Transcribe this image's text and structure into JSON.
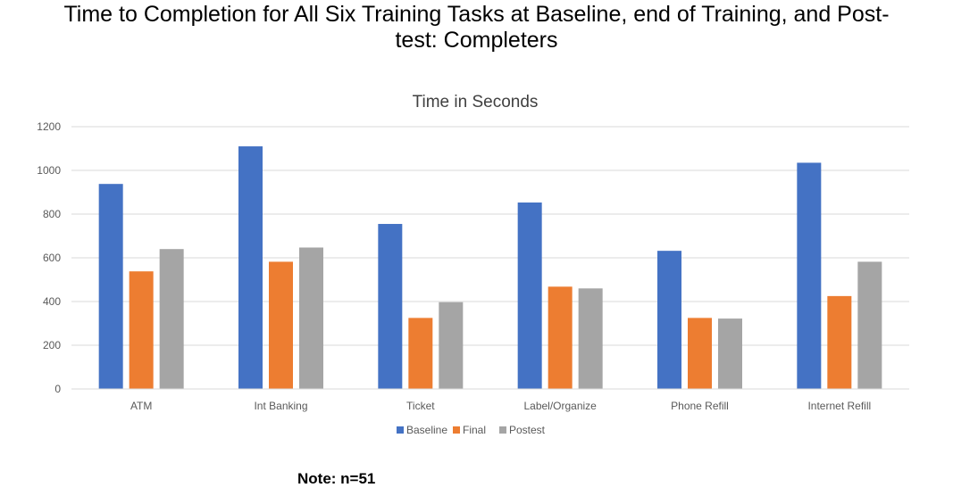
{
  "slide": {
    "title_line1": "Time to Completion for All Six Training Tasks at Baseline, end of Training, and Post-",
    "title_line2": "test: Completers",
    "note": "Note: n=51"
  },
  "chart_data": {
    "type": "bar",
    "title": "Time in Seconds",
    "categories": [
      "ATM",
      "Int Banking",
      "Ticket",
      "Label/Organize",
      "Phone Refill",
      "Internet Refill"
    ],
    "series": [
      {
        "name": "Baseline",
        "color": "#4472c4",
        "values": [
          938,
          1110,
          755,
          853,
          632,
          1035
        ]
      },
      {
        "name": "Final",
        "color": "#ed7d31",
        "values": [
          538,
          582,
          325,
          468,
          325,
          425
        ]
      },
      {
        "name": "Postest",
        "color": "#a5a5a5",
        "values": [
          640,
          647,
          397,
          460,
          322,
          582
        ]
      }
    ],
    "ylim": [
      0,
      1200
    ],
    "yticks": [
      "0",
      "200",
      "400",
      "600",
      "800",
      "1000",
      "1200"
    ],
    "legend_position": "bottom",
    "gridlines": true
  }
}
